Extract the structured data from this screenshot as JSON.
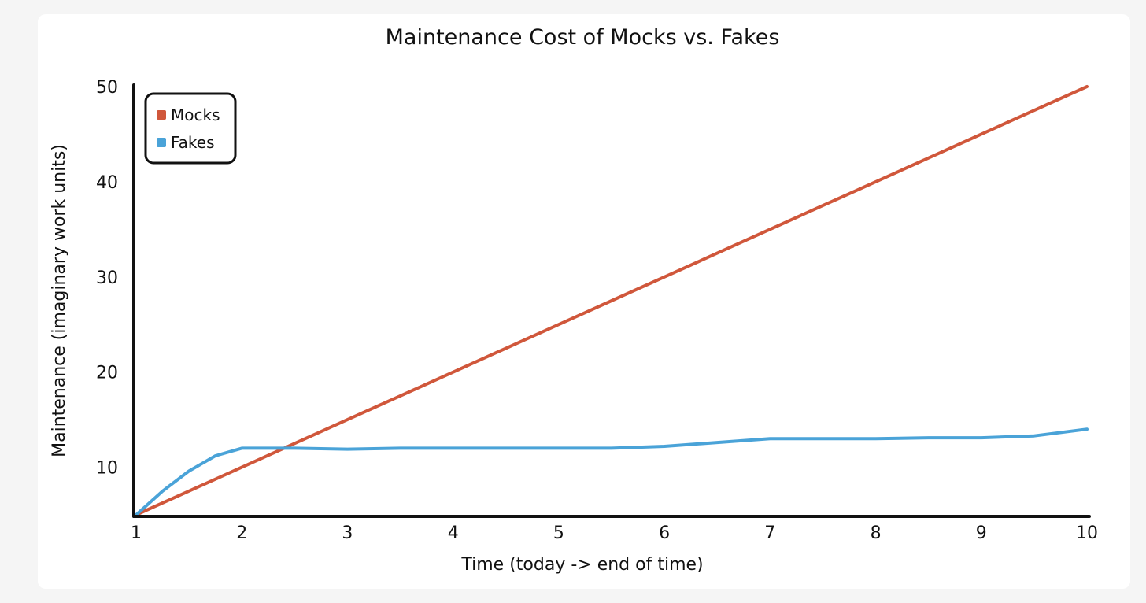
{
  "chart_data": {
    "type": "line",
    "title": "Maintenance Cost of Mocks vs. Fakes",
    "xlabel": "Time (today -> end of time)",
    "ylabel": "Maintenance (imaginary work units)",
    "xlim": [
      1,
      10
    ],
    "ylim": [
      5,
      50
    ],
    "xticks": [
      1,
      2,
      3,
      4,
      5,
      6,
      7,
      8,
      9,
      10
    ],
    "yticks": [
      10,
      20,
      30,
      40,
      50
    ],
    "grid": false,
    "legend": "top-left",
    "series": [
      {
        "name": "Mocks",
        "color": "#d0573b",
        "x": [
          1,
          1.5,
          2,
          2.5,
          3,
          3.5,
          4,
          4.5,
          5,
          5.5,
          6,
          6.5,
          7,
          7.5,
          8,
          8.5,
          9,
          9.5,
          10
        ],
        "y": [
          5,
          7.5,
          10,
          12.5,
          15,
          17.5,
          20,
          22.5,
          25,
          27.5,
          30,
          32.5,
          35,
          37.5,
          40,
          42.5,
          45,
          47.5,
          50
        ]
      },
      {
        "name": "Fakes",
        "color": "#4aa3d8",
        "x": [
          1,
          1.25,
          1.5,
          1.75,
          2,
          2.5,
          3,
          3.5,
          4,
          4.5,
          5,
          5.5,
          6,
          6.5,
          7,
          7.5,
          8,
          8.5,
          9,
          9.5,
          10
        ],
        "y": [
          5,
          7.5,
          9.6,
          11.2,
          12,
          12,
          11.9,
          12,
          12,
          12,
          12,
          12,
          12.2,
          12.6,
          13,
          13,
          13,
          13.1,
          13.1,
          13.3,
          14
        ]
      }
    ]
  }
}
